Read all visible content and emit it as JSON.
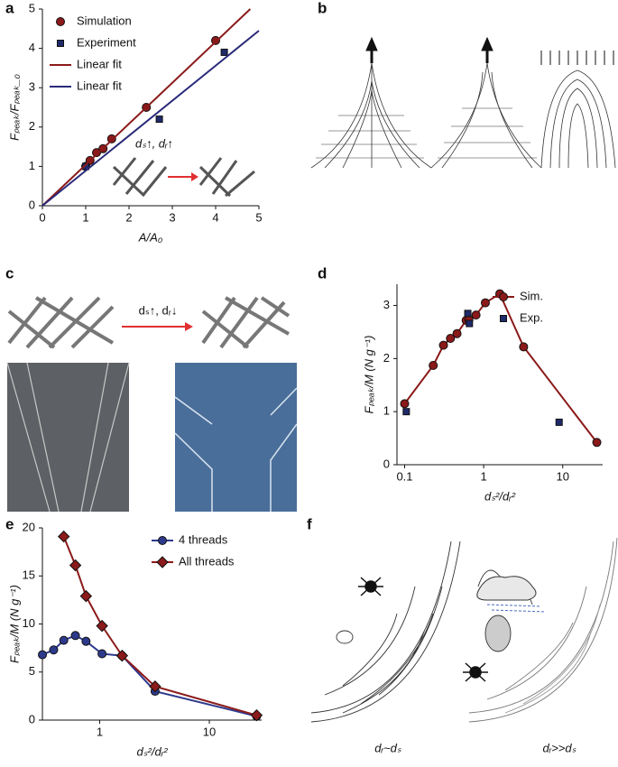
{
  "panel_labels": [
    "a",
    "b",
    "c",
    "d",
    "e",
    "f"
  ],
  "panel_c": {
    "label": "dₛ↑, dᵣ↓"
  },
  "panel_f": {
    "labels": [
      "dᵣ~dₛ",
      "dᵣ>>dₛ"
    ]
  },
  "chart_data": [
    {
      "type": "scatter",
      "xlabel": "A/A₀",
      "ylabel": "Fₚₑₐₖ/Fₚₑₐₖ_₀",
      "xlim": [
        0,
        5
      ],
      "ylim": [
        0,
        5
      ],
      "xticks": [
        0,
        1,
        2,
        3,
        4,
        5
      ],
      "yticks": [
        0,
        1,
        2,
        3,
        4,
        5
      ],
      "legend": "upper left",
      "annotations": [
        "dₛ↑, dᵣ↑"
      ],
      "series": [
        {
          "name": "Simulation",
          "color": "#8b1a1a",
          "marker": "circle",
          "line": false,
          "x": [
            1,
            1.1,
            1.25,
            1.4,
            1.6,
            2.4,
            4
          ],
          "values": [
            1,
            1.15,
            1.35,
            1.45,
            1.7,
            2.5,
            4.2
          ]
        },
        {
          "name": "Experiment",
          "color": "#1f2a6b",
          "marker": "square",
          "line": false,
          "x": [
            1,
            2.7,
            4.2
          ],
          "values": [
            1,
            2.2,
            3.9
          ]
        },
        {
          "name": "Linear fit",
          "color": "#8b1a1a",
          "marker": "none",
          "line": true,
          "x": [
            0,
            4.8
          ],
          "values": [
            0,
            5
          ]
        },
        {
          "name": "Linear fit",
          "color": "#2a2a7a",
          "marker": "none",
          "line": true,
          "x": [
            0,
            5
          ],
          "values": [
            0,
            4.45
          ]
        }
      ]
    },
    {
      "type": "line",
      "xlabel": "dₛ²/dᵣ²",
      "ylabel": "Fₚₑₐₖ/M (N g⁻¹)",
      "xscale": "log",
      "xlim": [
        0.08,
        32
      ],
      "ylim": [
        0,
        3.4
      ],
      "xticks": [
        0.1,
        1,
        10
      ],
      "yticks": [
        0,
        1,
        2,
        3
      ],
      "legend": "upper right",
      "series": [
        {
          "name": "Sim.",
          "color": "#8b1a1a",
          "marker": "circle",
          "line": true,
          "x": [
            0.1,
            0.23,
            0.31,
            0.38,
            0.46,
            0.6,
            0.65,
            0.8,
            1.05,
            1.6,
            3.2,
            27
          ],
          "values": [
            1.15,
            1.87,
            2.25,
            2.38,
            2.47,
            2.72,
            2.73,
            2.82,
            3.05,
            3.22,
            2.22,
            0.42
          ]
        },
        {
          "name": "Exp.",
          "color": "#1f2a6b",
          "marker": "square",
          "line": false,
          "x": [
            0.105,
            0.63,
            0.66,
            9
          ],
          "values": [
            1.0,
            2.85,
            2.66,
            0.8
          ]
        }
      ]
    },
    {
      "type": "line",
      "xlabel": "dₛ²/dᵣ²",
      "ylabel": "Fₚₑₐₖ/M (N g⁻¹)",
      "xscale": "log",
      "xlim": [
        0.3,
        30
      ],
      "ylim": [
        0,
        20
      ],
      "xticks": [
        1,
        10
      ],
      "yticks": [
        0,
        5,
        10,
        15,
        20
      ],
      "legend": "upper right",
      "series": [
        {
          "name": "4 threads",
          "color": "#2d3a8c",
          "marker": "circle",
          "line": true,
          "x": [
            0.3,
            0.38,
            0.47,
            0.6,
            0.75,
            1.05,
            1.6,
            3.2,
            27
          ],
          "values": [
            6.8,
            7.3,
            8.3,
            8.8,
            8.2,
            6.9,
            6.7,
            3.0,
            0.4
          ]
        },
        {
          "name": "All threads",
          "color": "#8b1a1a",
          "marker": "diamond",
          "line": true,
          "x": [
            0.47,
            0.6,
            0.75,
            1.05,
            1.6,
            3.2,
            27
          ],
          "values": [
            19.1,
            16.1,
            12.9,
            9.8,
            6.7,
            3.5,
            0.5
          ]
        }
      ]
    }
  ]
}
